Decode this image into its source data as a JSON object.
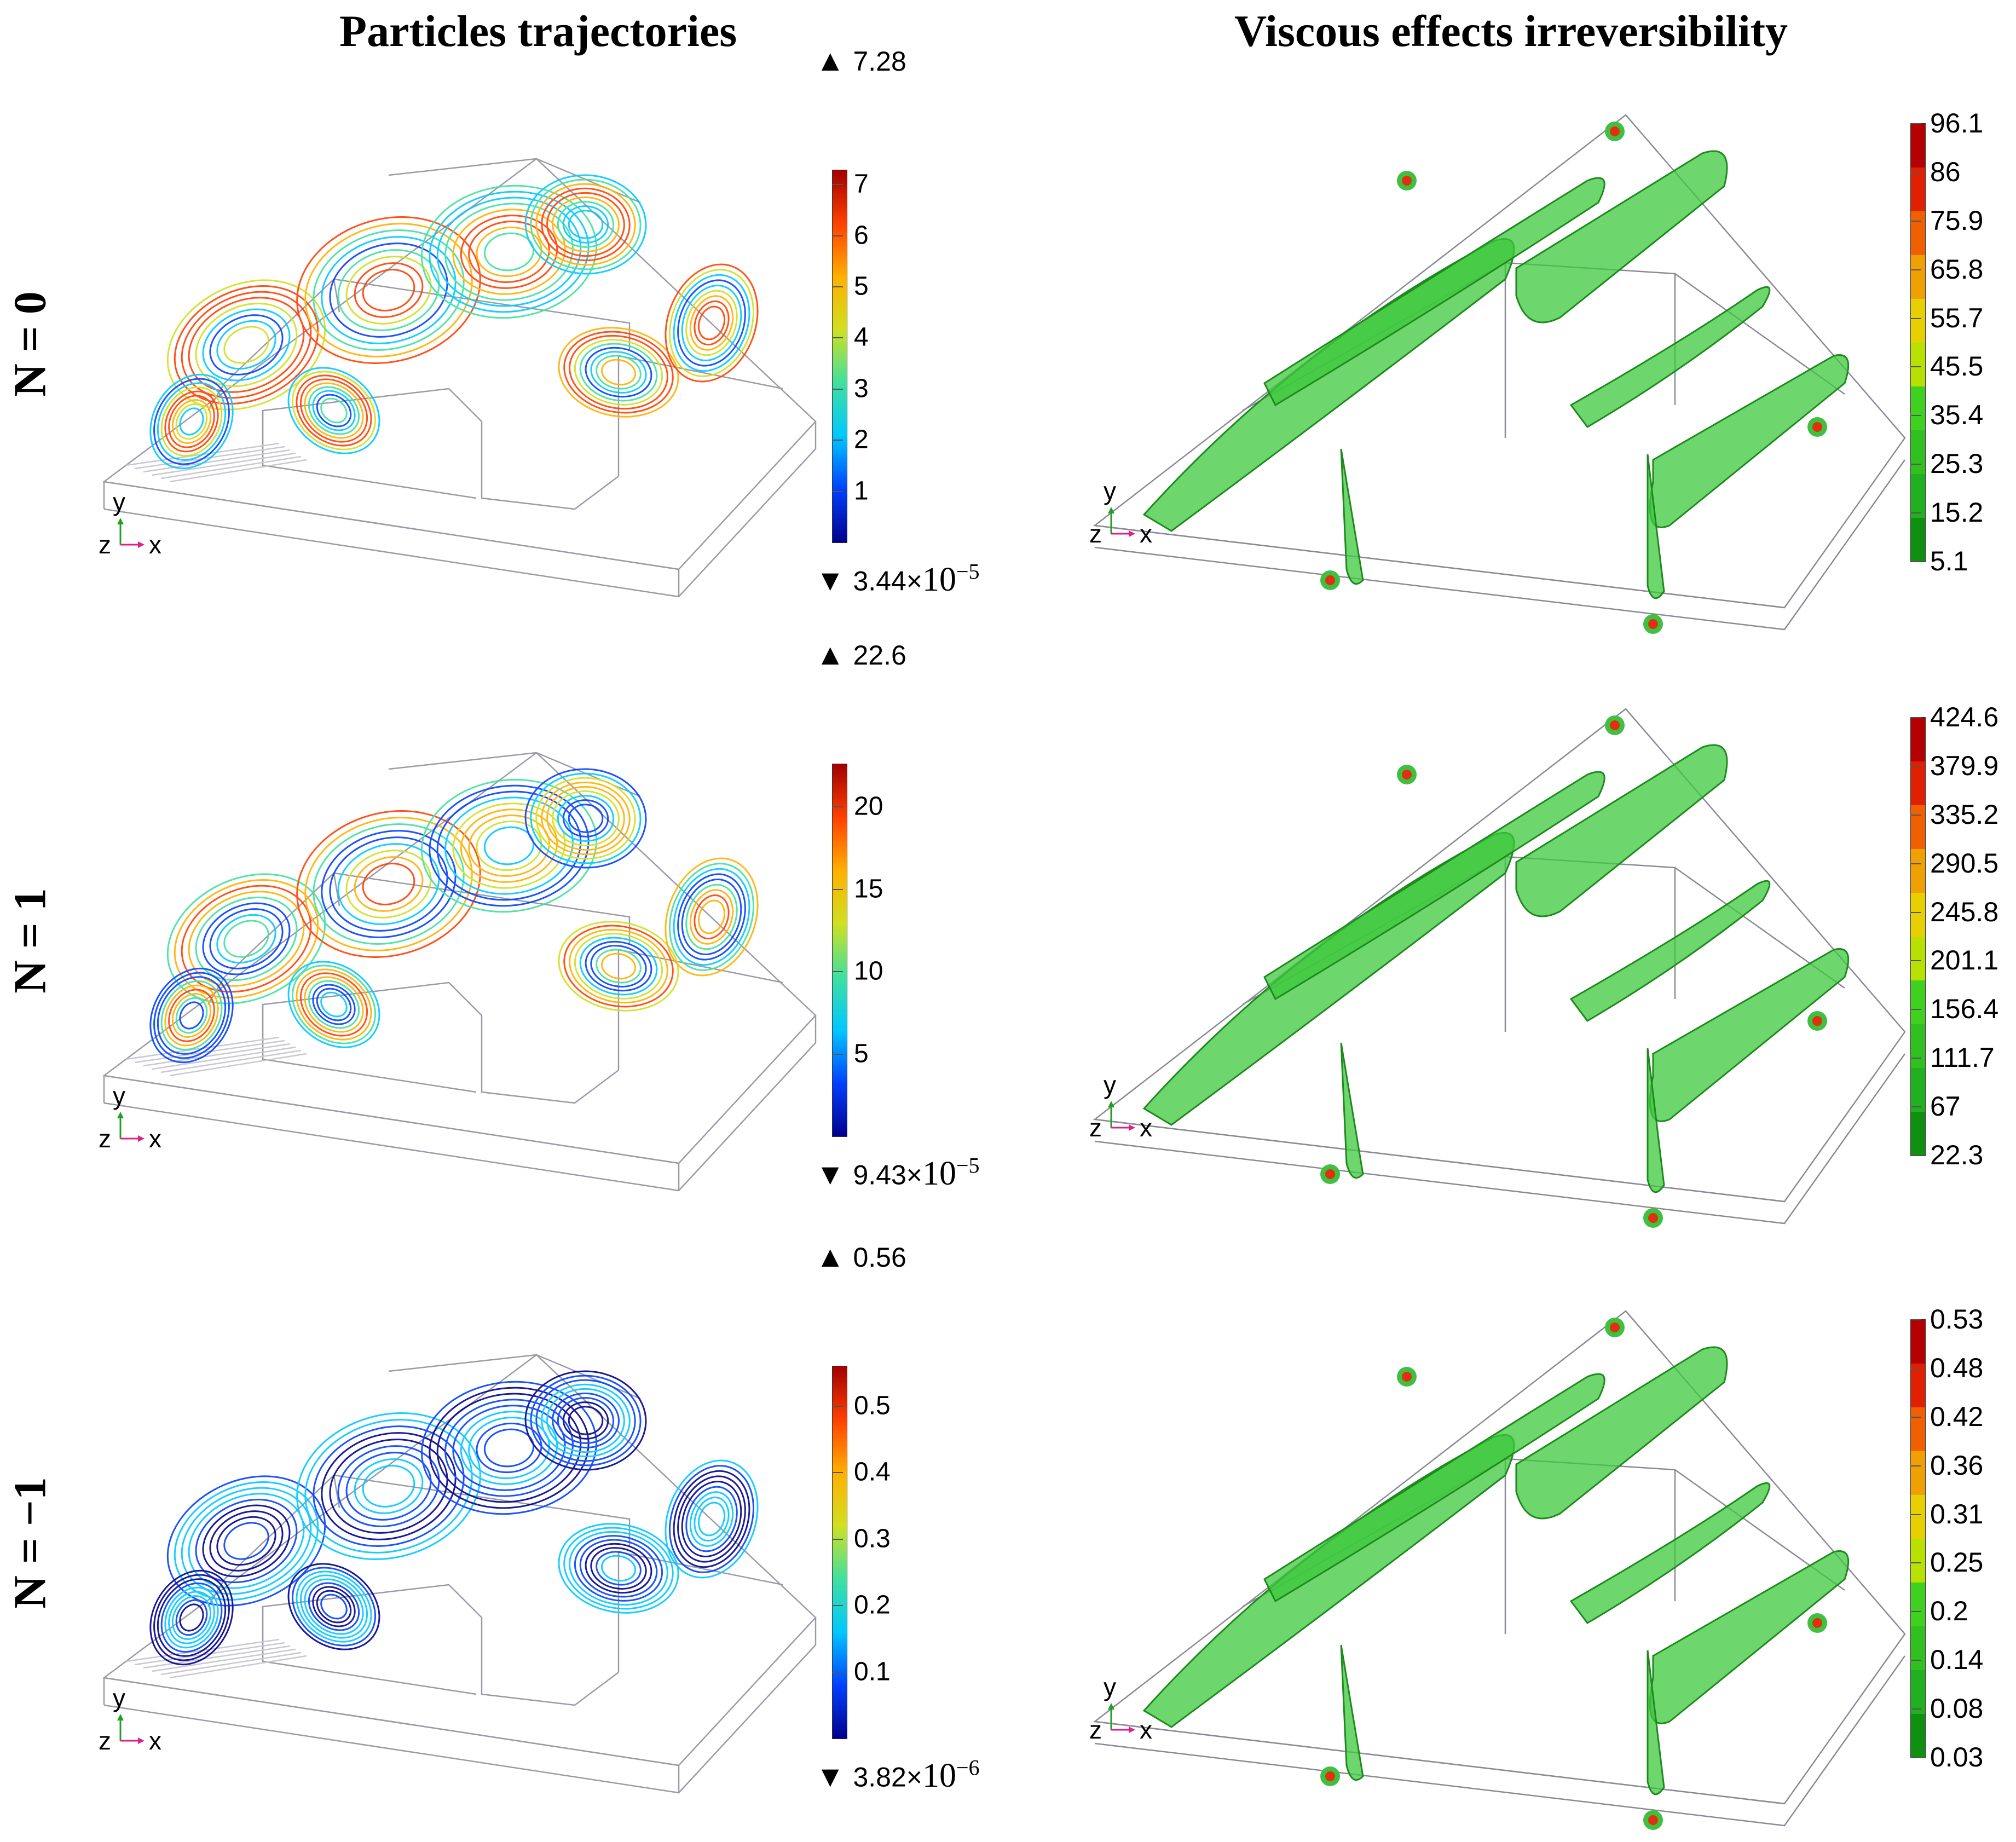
{
  "titles": {
    "left": "Particles trajectories",
    "right": "Viscous effects irreversibility"
  },
  "rows": [
    {
      "label": "N = 0",
      "particles": {
        "max": "7.28",
        "min_mant": "3.44×",
        "min_exp": "10",
        "min_pow": "−5",
        "ticks": [
          "7",
          "6",
          "5",
          "4",
          "3",
          "2",
          "1"
        ],
        "tick_values": [
          7,
          6,
          5,
          4,
          3,
          2,
          1
        ],
        "scale_max": 7.28
      },
      "viscous": {
        "ticks": [
          "96.1",
          "86",
          "75.9",
          "65.8",
          "55.7",
          "45.5",
          "35.4",
          "25.3",
          "15.2",
          "5.1"
        ]
      }
    },
    {
      "label": "N = 1",
      "particles": {
        "max": "22.6",
        "min_mant": "9.43×",
        "min_exp": "10",
        "min_pow": "−5",
        "ticks": [
          "20",
          "15",
          "10",
          "5"
        ],
        "tick_values": [
          20,
          15,
          10,
          5
        ],
        "scale_max": 22.6
      },
      "viscous": {
        "ticks": [
          "424.6",
          "379.9",
          "335.2",
          "290.5",
          "245.8",
          "201.1",
          "156.4",
          "111.7",
          "67",
          "22.3"
        ]
      }
    },
    {
      "label": "N = −1",
      "particles": {
        "max": "0.56",
        "min_mant": "3.82×",
        "min_exp": "10",
        "min_pow": "−6",
        "ticks": [
          "0.5",
          "0.4",
          "0.3",
          "0.2",
          "0.1"
        ],
        "tick_values": [
          0.5,
          0.4,
          0.3,
          0.2,
          0.1
        ],
        "scale_max": 0.56
      },
      "viscous": {
        "ticks": [
          "0.53",
          "0.48",
          "0.42",
          "0.36",
          "0.31",
          "0.25",
          "0.2",
          "0.14",
          "0.08",
          "0.03"
        ]
      }
    }
  ],
  "axes": {
    "y": "y",
    "z": "z",
    "x": "x"
  },
  "colors": {
    "rainbow": [
      "#00008c",
      "#0040ff",
      "#00c8ff",
      "#40e0a0",
      "#d0e020",
      "#ffb000",
      "#ff4000",
      "#a00000"
    ],
    "viscous": [
      "#b40000",
      "#e02000",
      "#f06000",
      "#f0a000",
      "#e8d000",
      "#b8e000",
      "#40d020",
      "#30c020",
      "#20b020",
      "#109010"
    ],
    "green_fill": "#3cc83c"
  }
}
